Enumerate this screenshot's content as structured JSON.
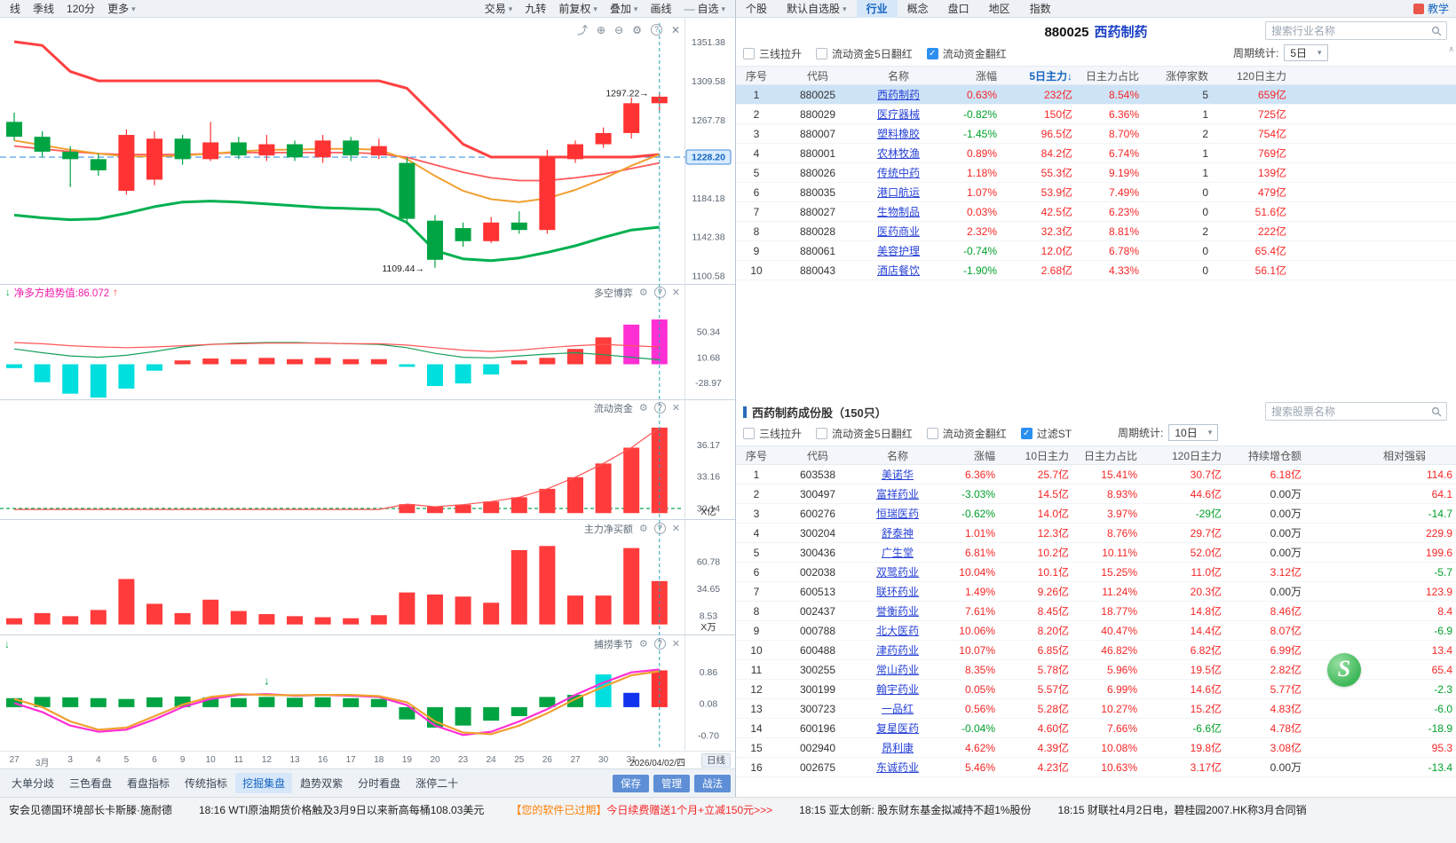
{
  "colors": {
    "up": "#ff3333",
    "down": "#00a443",
    "accent": "#1465c0",
    "magenta": "#ff2fd4",
    "cyan": "#00dede"
  },
  "left_pane": {
    "toolbar_left": [
      {
        "label": "线"
      },
      {
        "label": "季线"
      },
      {
        "label": "120分"
      },
      {
        "label": "更多",
        "caret": true
      }
    ],
    "toolbar_right": [
      {
        "label": "交易",
        "caret": true
      },
      {
        "label": "九转"
      },
      {
        "label": "前复权",
        "caret": true
      },
      {
        "label": "叠加",
        "caret": true
      },
      {
        "label": "画线"
      },
      {
        "label": "自选",
        "caret": true,
        "dash_icon": true
      }
    ],
    "chart_icons": [
      "share",
      "zoom-in",
      "zoom-out",
      "settings",
      "help",
      "close"
    ],
    "panel_icons": [
      "settings",
      "help",
      "close"
    ],
    "bottom_toolbar": {
      "items": [
        {
          "label": "大单分歧"
        },
        {
          "label": "三色看盘"
        },
        {
          "label": "看盘指标"
        },
        {
          "label": "传统指标"
        },
        {
          "label": "挖掘集盘",
          "active": true
        },
        {
          "label": "趋势双紫"
        },
        {
          "label": "分时看盘"
        },
        {
          "label": "涨停二十"
        }
      ],
      "buttons": [
        "保存",
        "管理",
        "战法"
      ]
    }
  },
  "chart_data": {
    "type": "candlestick",
    "dates": [
      "27",
      "3月",
      "3",
      "4",
      "5",
      "6",
      "9",
      "10",
      "11",
      "12",
      "13",
      "16",
      "17",
      "18",
      "19",
      "20",
      "23",
      "24",
      "25",
      "26",
      "27",
      "30",
      "31",
      "2026/04/02/四"
    ],
    "period_tag": "日线",
    "main": {
      "candles": [
        [
          1266,
          1276,
          1246,
          1250
        ],
        [
          1250,
          1256,
          1228,
          1234
        ],
        [
          1234,
          1240,
          1196,
          1226
        ],
        [
          1226,
          1232,
          1208,
          1214
        ],
        [
          1192,
          1258,
          1188,
          1252
        ],
        [
          1204,
          1256,
          1198,
          1248
        ],
        [
          1248,
          1252,
          1220,
          1226
        ],
        [
          1226,
          1266,
          1224,
          1244
        ],
        [
          1244,
          1250,
          1226,
          1230
        ],
        [
          1230,
          1252,
          1224,
          1242
        ],
        [
          1242,
          1246,
          1224,
          1228
        ],
        [
          1228,
          1252,
          1222,
          1246
        ],
        [
          1246,
          1250,
          1224,
          1230
        ],
        [
          1230,
          1248,
          1226,
          1240
        ],
        [
          1222,
          1228,
          1156,
          1162
        ],
        [
          1160,
          1166,
          1109.44,
          1118
        ],
        [
          1152,
          1158,
          1132,
          1138
        ],
        [
          1138,
          1164,
          1136,
          1158
        ],
        [
          1158,
          1170,
          1146,
          1150
        ],
        [
          1150,
          1236,
          1146,
          1228
        ],
        [
          1226,
          1246,
          1222,
          1242
        ],
        [
          1242,
          1260,
          1238,
          1254
        ],
        [
          1254,
          1292,
          1248,
          1286
        ],
        [
          1286,
          1297.22,
          1278,
          1293
        ]
      ],
      "upper_band": [
        1352,
        1348,
        1320,
        1310,
        1310,
        1310,
        1310,
        1310,
        1310,
        1310,
        1310,
        1310,
        1310,
        1310,
        1302,
        1272,
        1242,
        1228.2,
        1228.2,
        1228.2,
        1228.2,
        1228.2,
        1228.2,
        1231
      ],
      "lower_band": [
        1166,
        1163,
        1161,
        1162,
        1168,
        1175,
        1180,
        1181,
        1180,
        1178,
        1176,
        1174,
        1173,
        1172,
        1158,
        1128,
        1119,
        1117,
        1120,
        1126,
        1133,
        1142,
        1150,
        1153
      ],
      "ma_slow": [
        1240,
        1237,
        1234,
        1232,
        1231,
        1231,
        1231,
        1232,
        1233,
        1233,
        1233,
        1233,
        1233,
        1232,
        1228,
        1220,
        1212,
        1206,
        1203,
        1203,
        1206,
        1210,
        1216,
        1222
      ],
      "ma_fast": [
        1246,
        1241,
        1236,
        1232,
        1229,
        1229,
        1230,
        1232,
        1234,
        1236,
        1236,
        1237,
        1237,
        1236,
        1226,
        1208,
        1192,
        1183,
        1180,
        1184,
        1193,
        1205,
        1219,
        1231
      ],
      "ref_price": 1228.2,
      "axis_labels": [
        "1351.38",
        "1309.58",
        "1267.78",
        "1228.20",
        "1184.18",
        "1142.38",
        "1100.58"
      ],
      "highlight_label": "1228.20",
      "high_annotation": "1297.22→",
      "high_value": 1297.22,
      "low_annotation": "1109.44→",
      "low_value": 1109.44
    },
    "bokeh": {
      "title": "多空博弈",
      "label_prefix": "净多方趋势值:",
      "label_value": "86.072",
      "hist": [
        -6,
        -28,
        -46,
        -52,
        -38,
        -10,
        6,
        9,
        8,
        10,
        8,
        10,
        8,
        8,
        -4,
        -34,
        -30,
        -16,
        6,
        10,
        24,
        42,
        62,
        70
      ],
      "line_green": [
        24,
        18,
        13,
        11,
        14,
        20,
        27,
        31,
        33,
        34,
        34,
        33,
        32,
        31,
        26,
        17,
        11,
        10,
        13,
        16,
        18,
        15,
        11,
        7
      ],
      "line_red": [
        34,
        32,
        29,
        27,
        26,
        27,
        29,
        31,
        32,
        33,
        33,
        33,
        32,
        32,
        30,
        26,
        22,
        20,
        22,
        26,
        29,
        31,
        29,
        27
      ],
      "magenta_from": 22,
      "axis_labels": [
        "50.34",
        "10.68",
        "-28.97"
      ]
    },
    "liudong": {
      "title": "流动资金",
      "bars": [
        29.7,
        29.7,
        29.7,
        29.7,
        29.7,
        29.7,
        29.7,
        29.7,
        29.7,
        29.7,
        29.7,
        29.7,
        29.7,
        29.7,
        30.55,
        30.3,
        30.5,
        30.8,
        31.2,
        32.0,
        33.1,
        34.4,
        35.9,
        37.8
      ],
      "line": [
        30.05,
        30.05,
        30.05,
        30.05,
        30.05,
        30.05,
        30.05,
        30.05,
        30.05,
        30.05,
        30.05,
        30.05,
        30.05,
        30.05,
        30.55,
        30.3,
        30.5,
        30.8,
        31.2,
        32.0,
        33.1,
        34.4,
        35.9,
        37.8
      ],
      "dash_value": 30.14,
      "baseline": 29.7,
      "axis_labels": [
        "36.17",
        "33.16",
        "30.14"
      ],
      "unit": "X亿"
    },
    "zhuli": {
      "title": "主力净买额",
      "bars": [
        6,
        11,
        8,
        14,
        44,
        20,
        11,
        24,
        13,
        10,
        8,
        7,
        6,
        9,
        31,
        29,
        27,
        21,
        72,
        76,
        28,
        28,
        74,
        42
      ],
      "axis_labels": [
        "60.78",
        "34.65",
        "8.53"
      ],
      "unit": "X万"
    },
    "bulao": {
      "title": "捕捞季节",
      "bars": [
        0.22,
        0.25,
        0.24,
        0.22,
        0.2,
        0.24,
        0.26,
        0.24,
        0.22,
        0.25,
        0.23,
        0.24,
        0.22,
        0.2,
        -0.3,
        -0.5,
        -0.45,
        -0.33,
        -0.22,
        0.25,
        0.3,
        0.8,
        0.35,
        0.9
      ],
      "bar_colors": {
        "21": "cyan",
        "22": "blue",
        "23": "red"
      },
      "line_magenta": [
        0.1,
        -0.12,
        -0.45,
        -0.6,
        -0.55,
        -0.3,
        0.0,
        0.2,
        0.3,
        0.32,
        0.28,
        0.3,
        0.28,
        0.25,
        0.05,
        -0.45,
        -0.68,
        -0.6,
        -0.35,
        -0.05,
        0.3,
        0.6,
        0.85,
        0.92
      ],
      "line_orange": [
        0.2,
        0.0,
        -0.35,
        -0.55,
        -0.5,
        -0.22,
        0.06,
        0.25,
        0.32,
        0.3,
        0.29,
        0.3,
        0.3,
        0.27,
        0.12,
        -0.35,
        -0.62,
        -0.66,
        -0.45,
        -0.15,
        0.2,
        0.5,
        0.78,
        0.88
      ],
      "axis_labels": [
        "0.86",
        "0.08",
        "-0.70"
      ]
    }
  },
  "right_pane": {
    "tabs": [
      {
        "label": "个股"
      },
      {
        "label": "默认自选股",
        "caret": true
      },
      {
        "label": "行业",
        "active": true
      },
      {
        "label": "概念"
      },
      {
        "label": "盘口"
      },
      {
        "label": "地区"
      },
      {
        "label": "指数"
      }
    ],
    "help_tab": "教学",
    "logo_text": "S",
    "section1": {
      "code": "880025",
      "name": "西药制药",
      "search_placeholder": "搜索行业名称",
      "filters": [
        {
          "label": "三线拉升",
          "checked": false
        },
        {
          "label": "流动资金5日翻红",
          "checked": false
        },
        {
          "label": "流动资金翻红",
          "checked": true
        }
      ],
      "period_label": "周期统计:",
      "period_value": "5日",
      "headers": [
        "序号",
        "代码",
        "名称",
        "涨幅",
        "5日主力",
        "日主力占比",
        "涨停家数",
        "120日主力"
      ],
      "sorted_col": 4,
      "selected_row": 0,
      "rows": [
        [
          "1",
          "880025",
          "西药制药",
          "0.63%",
          "232亿",
          "8.54%",
          "5",
          "659亿"
        ],
        [
          "2",
          "880029",
          "医疗器械",
          "-0.82%",
          "150亿",
          "6.36%",
          "1",
          "725亿"
        ],
        [
          "3",
          "880007",
          "塑料橡胶",
          "-1.45%",
          "96.5亿",
          "8.70%",
          "2",
          "754亿"
        ],
        [
          "4",
          "880001",
          "农林牧渔",
          "0.89%",
          "84.2亿",
          "6.74%",
          "1",
          "769亿"
        ],
        [
          "5",
          "880026",
          "传统中药",
          "1.18%",
          "55.3亿",
          "9.19%",
          "1",
          "139亿"
        ],
        [
          "6",
          "880035",
          "港口航运",
          "1.07%",
          "53.9亿",
          "7.49%",
          "0",
          "479亿"
        ],
        [
          "7",
          "880027",
          "生物制品",
          "0.03%",
          "42.5亿",
          "6.23%",
          "0",
          "51.6亿"
        ],
        [
          "8",
          "880028",
          "医药商业",
          "2.32%",
          "32.3亿",
          "8.81%",
          "2",
          "222亿"
        ],
        [
          "9",
          "880061",
          "美容护理",
          "-0.74%",
          "12.0亿",
          "6.78%",
          "0",
          "65.4亿"
        ],
        [
          "10",
          "880043",
          "酒店餐饮",
          "-1.90%",
          "2.68亿",
          "4.33%",
          "0",
          "56.1亿"
        ]
      ]
    },
    "section2": {
      "title": "西药制药成份股（150只）",
      "search_placeholder": "搜索股票名称",
      "filters": [
        {
          "label": "三线拉升",
          "checked": false
        },
        {
          "label": "流动资金5日翻红",
          "checked": false
        },
        {
          "label": "流动资金翻红",
          "checked": false
        },
        {
          "label": "过滤ST",
          "checked": true
        }
      ],
      "period_label": "周期统计:",
      "period_value": "10日",
      "headers": [
        "序号",
        "代码",
        "名称",
        "涨幅",
        "10日主力",
        "日主力占比",
        "120日主力",
        "持续增仓额",
        "相对强弱"
      ],
      "rows": [
        [
          "1",
          "603538",
          "美诺华",
          "6.36%",
          "25.7亿",
          "15.41%",
          "30.7亿",
          "6.18亿",
          "114.6"
        ],
        [
          "2",
          "300497",
          "富祥药业",
          "-3.03%",
          "14.5亿",
          "8.93%",
          "44.6亿",
          "0.00万",
          "64.1"
        ],
        [
          "3",
          "600276",
          "恒瑞医药",
          "-0.62%",
          "14.0亿",
          "3.97%",
          "-29亿",
          "0.00万",
          "-14.7"
        ],
        [
          "4",
          "300204",
          "舒泰神",
          "1.01%",
          "12.3亿",
          "8.76%",
          "29.7亿",
          "0.00万",
          "229.9"
        ],
        [
          "5",
          "300436",
          "广生堂",
          "6.81%",
          "10.2亿",
          "10.11%",
          "52.0亿",
          "0.00万",
          "199.6"
        ],
        [
          "6",
          "002038",
          "双鹭药业",
          "10.04%",
          "10.1亿",
          "15.25%",
          "11.0亿",
          "3.12亿",
          "-5.7"
        ],
        [
          "7",
          "600513",
          "联环药业",
          "1.49%",
          "9.26亿",
          "11.24%",
          "20.3亿",
          "0.00万",
          "123.9"
        ],
        [
          "8",
          "002437",
          "誉衡药业",
          "7.61%",
          "8.45亿",
          "18.77%",
          "14.8亿",
          "8.46亿",
          "8.4"
        ],
        [
          "9",
          "000788",
          "北大医药",
          "10.06%",
          "8.20亿",
          "40.47%",
          "14.4亿",
          "8.07亿",
          "-6.9"
        ],
        [
          "10",
          "600488",
          "津药药业",
          "10.07%",
          "6.85亿",
          "46.82%",
          "6.82亿",
          "6.99亿",
          "13.4"
        ],
        [
          "11",
          "300255",
          "常山药业",
          "8.35%",
          "5.78亿",
          "5.96%",
          "19.5亿",
          "2.82亿",
          "65.4"
        ],
        [
          "12",
          "300199",
          "翰宇药业",
          "0.05%",
          "5.57亿",
          "6.99%",
          "14.6亿",
          "5.77亿",
          "-2.3"
        ],
        [
          "13",
          "300723",
          "一品红",
          "0.56%",
          "5.28亿",
          "10.27%",
          "15.2亿",
          "4.83亿",
          "-6.0"
        ],
        [
          "14",
          "600196",
          "复星医药",
          "-0.04%",
          "4.60亿",
          "7.66%",
          "-6.6亿",
          "4.78亿",
          "-18.9"
        ],
        [
          "15",
          "002940",
          "昂利康",
          "4.62%",
          "4.39亿",
          "10.08%",
          "19.8亿",
          "3.08亿",
          "95.3"
        ],
        [
          "16",
          "002675",
          "东诚药业",
          "5.46%",
          "4.23亿",
          "10.63%",
          "3.17亿",
          "0.00万",
          "-13.4"
        ]
      ]
    }
  },
  "status_bar": {
    "items": [
      [
        {
          "text": "安会见德国环境部长卡斯滕·施耐德",
          "color": "dark"
        }
      ],
      [
        {
          "text": "18:16 WTI原油期货价格触及3月9日以来新高每桶108.03美元",
          "color": "dark"
        }
      ],
      [
        {
          "text": "【您的软件已过期】",
          "color": "orange"
        },
        {
          "text": "今日续费赠送1个月+立减150元>>>",
          "color": "red"
        }
      ],
      [
        {
          "text": "18:15 亚太创新: 股东财东基金拟减持不超1%股份",
          "color": "dark"
        }
      ],
      [
        {
          "text": "18:15 财联社4月2日电，碧桂园2007.HK称3月合同销",
          "color": "dark"
        }
      ]
    ]
  }
}
